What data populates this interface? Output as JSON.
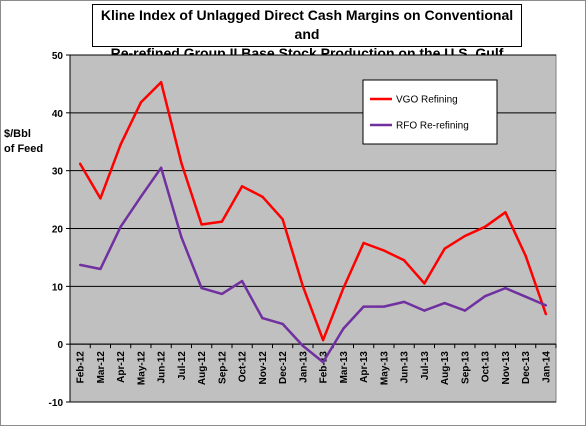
{
  "chart_data": {
    "type": "line",
    "title_line1": "Kline Index of Unlagged Direct Cash Margins on Conventional and",
    "title_line2": "Re-refined Group II Base Stock Production on the U.S. Gulf Coast",
    "ylabel_line1": "$/Bbl",
    "ylabel_line2": "of Feed",
    "xlabel": "",
    "ylim": [
      -10,
      50
    ],
    "yticks": [
      -10,
      0,
      10,
      20,
      30,
      40,
      50
    ],
    "grid": true,
    "legend_position": "top-right",
    "plot_background": "#c0c0c0",
    "categories": [
      "Feb-12",
      "Mar-12",
      "Apr-12",
      "May-12",
      "Jun-12",
      "Jul-12",
      "Aug-12",
      "Sep-12",
      "Oct-12",
      "Nov-12",
      "Dec-12",
      "Jan-13",
      "Feb-13",
      "Mar-13",
      "Apr-13",
      "May-13",
      "Jun-13",
      "Jul-13",
      "Aug-13",
      "Sep-13",
      "Oct-13",
      "Nov-13",
      "Dec-13",
      "Jan-14"
    ],
    "series": [
      {
        "name": "VGO Refining",
        "color": "#ff0000",
        "values": [
          31.2,
          25.2,
          34.5,
          41.8,
          45.3,
          31.3,
          20.7,
          21.2,
          27.3,
          25.5,
          21.6,
          10.0,
          0.7,
          9.7,
          17.5,
          16.2,
          14.5,
          10.5,
          16.5,
          18.7,
          20.3,
          22.8,
          15.3,
          5.2
        ]
      },
      {
        "name": "RFO Re-refining",
        "color": "#7030a0",
        "values": [
          13.7,
          13.0,
          20.3,
          25.5,
          30.5,
          18.5,
          9.7,
          8.7,
          10.9,
          4.5,
          3.5,
          -0.3,
          -3.1,
          2.7,
          6.5,
          6.5,
          7.3,
          5.8,
          7.1,
          5.8,
          8.3,
          9.7,
          8.2,
          6.7
        ]
      }
    ]
  }
}
